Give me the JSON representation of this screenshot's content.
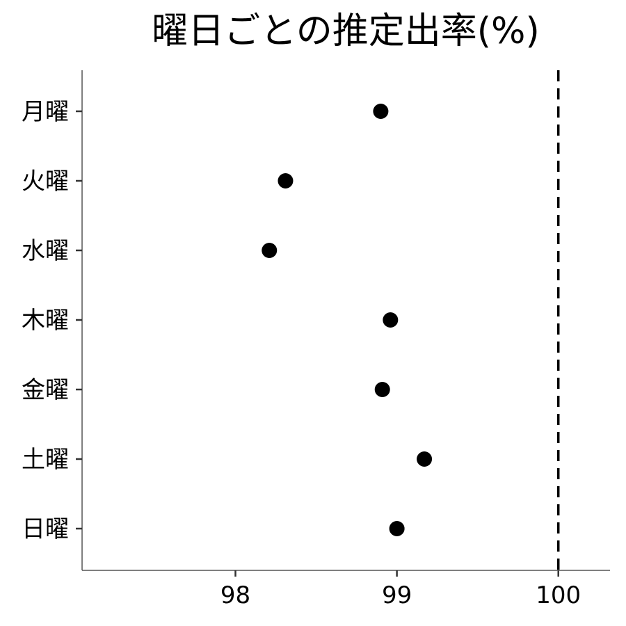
{
  "chart_data": {
    "type": "scatter",
    "title": "曜日ごとの推定出率(%)",
    "xlabel": "",
    "ylabel": "",
    "categories": [
      "月曜",
      "火曜",
      "水曜",
      "木曜",
      "金曜",
      "土曜",
      "日曜"
    ],
    "series": [
      {
        "values": [
          98.9,
          98.31,
          98.21,
          98.96,
          98.91,
          99.17,
          99.0
        ]
      }
    ],
    "x_ticks": [
      98,
      99,
      100
    ],
    "xlim": [
      97.05,
      100.32
    ],
    "reference_line": {
      "x": 100,
      "style": "dashed"
    },
    "grid": false,
    "legend": "none",
    "point_color": "#000000"
  }
}
